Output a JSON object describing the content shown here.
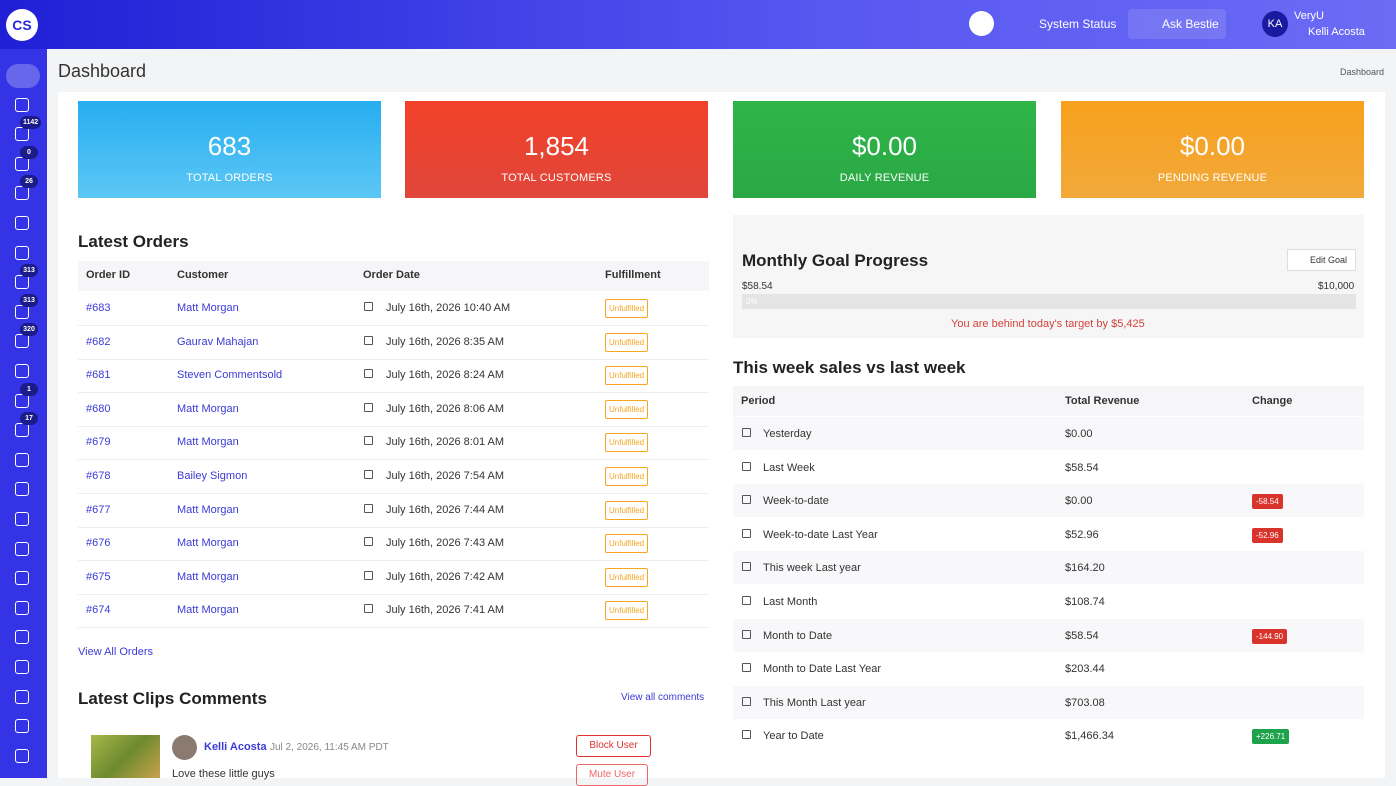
{
  "topbar": {
    "logo": "CS",
    "system_status": "System Status",
    "ask": "Ask Bestie",
    "avatar": "KA",
    "org": "VeryU",
    "user": "Kelli Acosta"
  },
  "sidebar": {
    "badges": [
      null,
      null,
      "1142",
      "0",
      "26",
      null,
      null,
      "313",
      "313",
      "320",
      null,
      "1",
      "17",
      null,
      null,
      null,
      null,
      null,
      null,
      null,
      null,
      null,
      null,
      null
    ]
  },
  "page": {
    "title": "Dashboard",
    "breadcrumb": "Dashboard"
  },
  "stats": [
    {
      "value": "683",
      "label": "TOTAL ORDERS"
    },
    {
      "value": "1,854",
      "label": "TOTAL CUSTOMERS"
    },
    {
      "value": "$0.00",
      "label": "DAILY REVENUE"
    },
    {
      "value": "$0.00",
      "label": "PENDING REVENUE"
    }
  ],
  "orders": {
    "title": "Latest Orders",
    "headers": [
      "Order ID",
      "Customer",
      "Order Date",
      "Fulfillment"
    ],
    "rows": [
      [
        "#683",
        "Matt Morgan",
        "July 16th, 2026 10:40 AM",
        "Unfulfilled"
      ],
      [
        "#682",
        "Gaurav Mahajan",
        "July 16th, 2026 8:35 AM",
        "Unfulfilled"
      ],
      [
        "#681",
        "Steven Commentsold",
        "July 16th, 2026 8:24 AM",
        "Unfulfilled"
      ],
      [
        "#680",
        "Matt Morgan",
        "July 16th, 2026 8:06 AM",
        "Unfulfilled"
      ],
      [
        "#679",
        "Matt Morgan",
        "July 16th, 2026 8:01 AM",
        "Unfulfilled"
      ],
      [
        "#678",
        "Bailey Sigmon",
        "July 16th, 2026 7:54 AM",
        "Unfulfilled"
      ],
      [
        "#677",
        "Matt Morgan",
        "July 16th, 2026 7:44 AM",
        "Unfulfilled"
      ],
      [
        "#676",
        "Matt Morgan",
        "July 16th, 2026 7:43 AM",
        "Unfulfilled"
      ],
      [
        "#675",
        "Matt Morgan",
        "July 16th, 2026 7:42 AM",
        "Unfulfilled"
      ],
      [
        "#674",
        "Matt Morgan",
        "July 16th, 2026 7:41 AM",
        "Unfulfilled"
      ]
    ],
    "link": "View All Orders"
  },
  "comments": {
    "title": "Latest Clips Comments",
    "link": "View all comments",
    "name": "Kelli Acosta",
    "time": "Jul 2, 2026, 11:45 AM PDT",
    "text": "Love these little guys",
    "block": "Block User",
    "mute": "Mute User"
  },
  "goal": {
    "title": "Monthly Goal Progress",
    "button": "Edit Goal",
    "current": "$58.54",
    "target": "$10,000",
    "bar_label": "0%",
    "message": "You are behind today's target by $5,425"
  },
  "week": {
    "title": "This week sales vs last week",
    "headers": [
      "Period",
      "Total Revenue",
      "Change"
    ],
    "rows": [
      [
        "Yesterday",
        "$0.00",
        null
      ],
      [
        "Last Week",
        "$58.54",
        null
      ],
      [
        "Week-to-date",
        "$0.00",
        "-58.54"
      ],
      [
        "Week-to-date Last Year",
        "$52.96",
        "-52.96"
      ],
      [
        "This week Last year",
        "$164.20",
        null
      ],
      [
        "Last Month",
        "$108.74",
        null
      ],
      [
        "Month to Date",
        "$58.54",
        "-144.90"
      ],
      [
        "Month to Date Last Year",
        "$203.44",
        null
      ],
      [
        "This Month Last year",
        "$703.08",
        null
      ],
      [
        "Year to Date",
        "$1,466.34",
        "+226.71"
      ]
    ]
  }
}
